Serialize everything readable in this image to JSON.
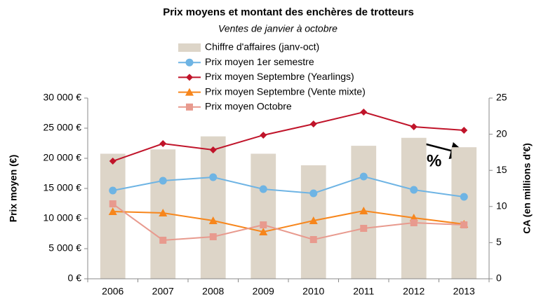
{
  "chart_data": {
    "type": "combo",
    "title": "Prix moyens et montant des enchères de trotteurs",
    "subtitle": "Ventes de janvier à octobre",
    "y_label": "Prix moyen (€)",
    "y2_label": "CA (en millions d'€)",
    "annotation": "-8%",
    "categories": [
      "2006",
      "2007",
      "2008",
      "2009",
      "2010",
      "2011",
      "2012",
      "2013"
    ],
    "ylim": [
      0,
      30000
    ],
    "yticks": [
      {
        "value": 0,
        "label": "0 €"
      },
      {
        "value": 5000,
        "label": "5 000 €"
      },
      {
        "value": 10000,
        "label": "10 000 €"
      },
      {
        "value": 15000,
        "label": "15 000 €"
      },
      {
        "value": 20000,
        "label": "20 000 €"
      },
      {
        "value": 25000,
        "label": "25 000 €"
      },
      {
        "value": 30000,
        "label": "30 000 €"
      }
    ],
    "y2lim": [
      0,
      25
    ],
    "y2ticks": [
      0,
      5,
      10,
      15,
      20,
      25
    ],
    "series": [
      {
        "name": "Chiffre d'affaires (janv-oct)",
        "type": "bar",
        "axis": "y2",
        "color": "#ddd5c8",
        "values": [
          17.3,
          17.9,
          19.7,
          17.3,
          15.7,
          18.4,
          19.5,
          18.2
        ]
      },
      {
        "name": "Prix moyen 1er semestre",
        "type": "line",
        "marker": "circle",
        "color": "#6eb4e4",
        "values": [
          14650,
          16280,
          16860,
          14880,
          14190,
          16980,
          14770,
          13600
        ]
      },
      {
        "name": "Prix moyen Septembre (Yearlings)",
        "type": "line",
        "marker": "diamond",
        "color": "#c0142a",
        "values": [
          19530,
          22440,
          21400,
          23840,
          25700,
          27670,
          25230,
          24650
        ]
      },
      {
        "name": "Prix moyen Septembre (Vente mixte)",
        "type": "line",
        "marker": "triangle",
        "color": "#f7861c",
        "values": [
          11160,
          10930,
          9650,
          7790,
          9650,
          11280,
          10120,
          9070
        ]
      },
      {
        "name": "Prix moyen Octobre",
        "type": "line",
        "marker": "square",
        "color": "#e89a8e",
        "values": [
          12440,
          6400,
          6980,
          8950,
          6510,
          8370,
          9300,
          8950
        ]
      }
    ]
  }
}
